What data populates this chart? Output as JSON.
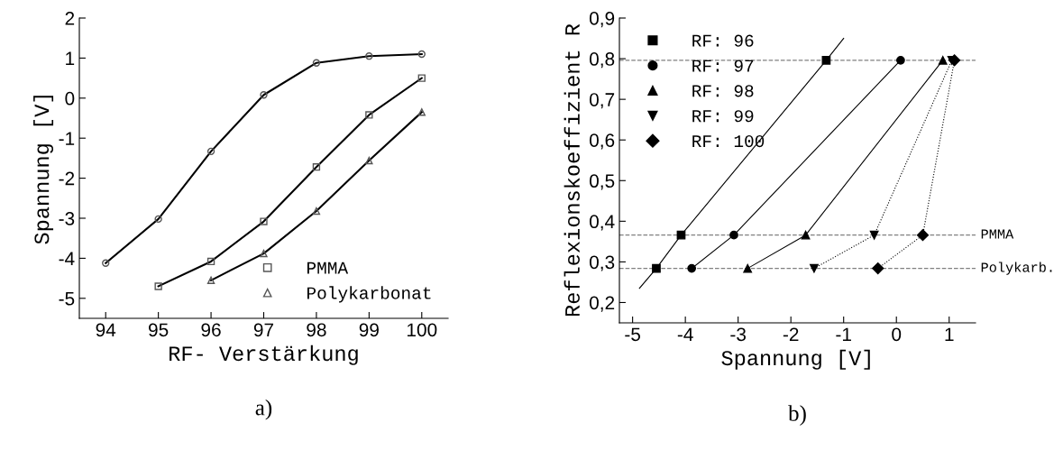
{
  "chart_data": [
    {
      "type": "line",
      "xlabel": "RF- Verstärkung",
      "ylabel": "Spannung [V]",
      "xlim": [
        93.5,
        100.5
      ],
      "xticks": [
        94,
        95,
        96,
        97,
        98,
        99,
        100
      ],
      "ylim": [
        -5.5,
        2
      ],
      "yticks": [
        -5,
        -4,
        -3,
        -2,
        -1,
        0,
        1,
        2
      ],
      "grid": false,
      "legend": "bottom right",
      "annotations": [
        "a)"
      ],
      "series": [
        {
          "color": "#000000",
          "marker": "circle",
          "x": [
            94,
            95,
            96,
            97,
            98,
            99,
            100
          ],
          "values": [
            -4.12,
            -3.02,
            -1.33,
            0.08,
            0.88,
            1.05,
            1.1
          ]
        },
        {
          "name": "PMMA",
          "color": "#000000",
          "marker": "square",
          "x": [
            95,
            96,
            97,
            98,
            99,
            100
          ],
          "values": [
            -4.7,
            -4.08,
            -3.08,
            -1.72,
            -0.42,
            0.5
          ]
        },
        {
          "name": "Polykarbonat",
          "color": "#000000",
          "marker": "triangle",
          "x": [
            96,
            97,
            98,
            99,
            100
          ],
          "values": [
            -4.55,
            -3.88,
            -2.82,
            -1.56,
            -0.35
          ]
        }
      ]
    },
    {
      "type": "line",
      "xlabel": "Spannung [V]",
      "ylabel": "Reflexionskoeffizient R",
      "xlim": [
        -5.25,
        1.5
      ],
      "xticks": [
        -5,
        -4,
        -3,
        -2,
        -1,
        0,
        1
      ],
      "ylim": [
        0.15,
        0.9
      ],
      "yticks": [
        {
          "value": 0.2,
          "label": "0,2"
        },
        {
          "value": 0.3,
          "label": "0,3"
        },
        {
          "value": 0.4,
          "label": "0,4"
        },
        {
          "value": 0.5,
          "label": "0,5"
        },
        {
          "value": 0.6,
          "label": "0,6"
        },
        {
          "value": 0.7,
          "label": "0,7"
        },
        {
          "value": 0.8,
          "label": "0,8"
        },
        {
          "value": 0.9,
          "label": "0,9"
        }
      ],
      "grid": false,
      "legend": "top left",
      "annotations": [
        "b)"
      ],
      "ref_lines": [
        {
          "axis": "y",
          "value": 0.796,
          "label": null,
          "color": "#808080",
          "line_style": "dashed"
        },
        {
          "axis": "y",
          "value": 0.366,
          "label": "PMMA",
          "color": "#808080",
          "line_style": "dashed"
        },
        {
          "axis": "y",
          "value": 0.284,
          "label": "Polykarb.",
          "color": "#808080",
          "line_style": "dashed"
        }
      ],
      "series": [
        {
          "type": "line",
          "color": "#000000",
          "marker": "none",
          "line_style": "solid",
          "x": [
            -4.87,
            -4.55,
            -4.08,
            -1.33,
            -1.0
          ],
          "values": [
            0.235,
            0.284,
            0.366,
            0.796,
            0.85
          ]
        },
        {
          "type": "scatter",
          "name": "RF: 96",
          "color": "#000000",
          "marker": "square",
          "x": [
            -4.55,
            -4.08,
            -1.33
          ],
          "values": [
            0.284,
            0.366,
            0.796
          ]
        },
        {
          "type": "line",
          "name": "RF: 97",
          "color": "#000000",
          "marker": "circle",
          "line_style": "solid",
          "x": [
            -3.88,
            -3.08,
            0.08
          ],
          "values": [
            0.284,
            0.366,
            0.796
          ]
        },
        {
          "type": "line",
          "name": "RF: 98",
          "color": "#000000",
          "marker": "triangle",
          "line_style": "solid",
          "x": [
            -2.82,
            -1.72,
            0.88
          ],
          "values": [
            0.284,
            0.366,
            0.796
          ]
        },
        {
          "type": "line",
          "name": "RF: 99",
          "color": "#000000",
          "marker": "triangle_down",
          "line_style": "dotted",
          "x": [
            -1.56,
            -0.42,
            1.05
          ],
          "values": [
            0.284,
            0.366,
            0.796
          ]
        },
        {
          "type": "line",
          "name": "RF: 100",
          "color": "#000000",
          "marker": "diamond",
          "line_style": "dotted",
          "x": [
            -0.35,
            0.5,
            1.1
          ],
          "values": [
            0.284,
            0.366,
            0.796
          ]
        }
      ]
    }
  ]
}
